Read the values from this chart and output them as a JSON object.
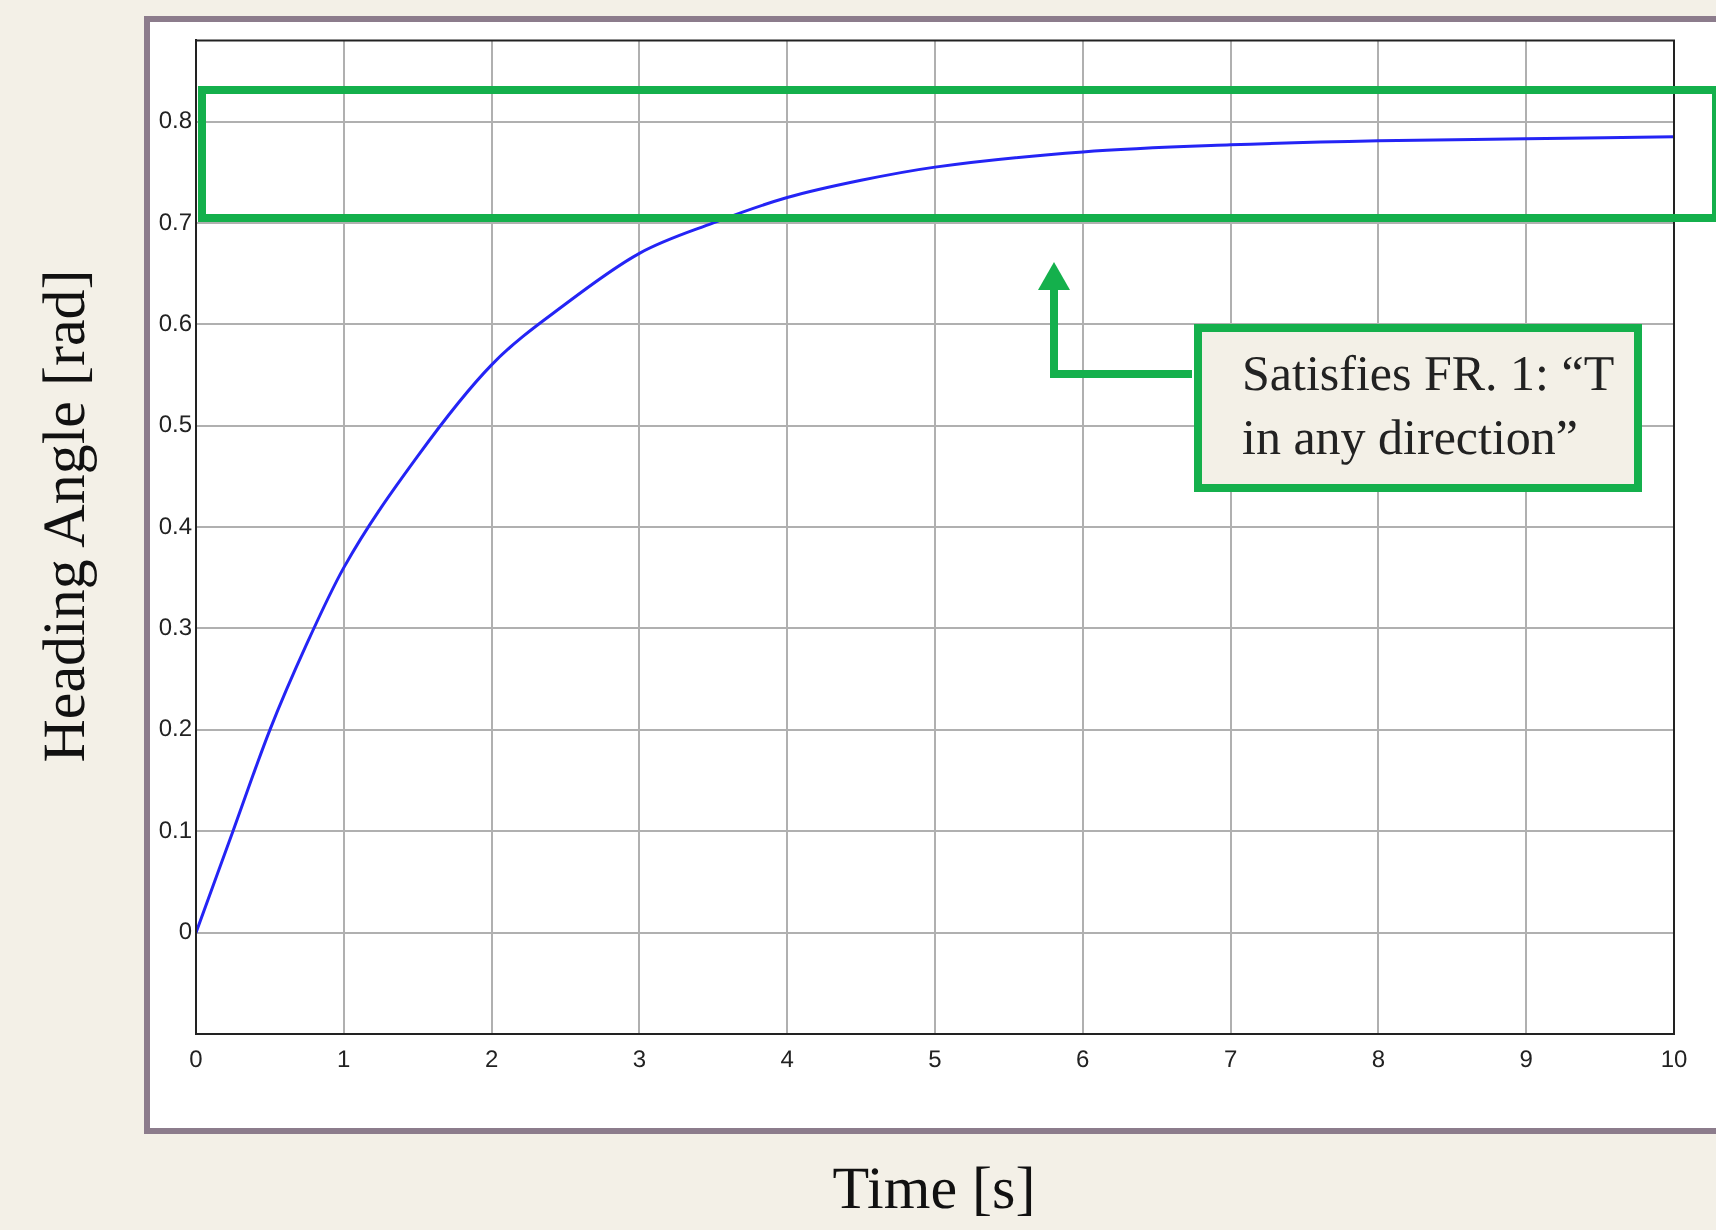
{
  "chart_data": {
    "type": "line",
    "xlabel": "Time [s]",
    "ylabel": "Heading Angle [rad]",
    "x": [
      0,
      0.25,
      0.5,
      0.75,
      1,
      1.5,
      2,
      2.5,
      3,
      3.5,
      4,
      4.5,
      5,
      6,
      7,
      8,
      9,
      10
    ],
    "series": [
      {
        "color": "#2424f5",
        "values": [
          0,
          0.1,
          0.2,
          0.285,
          0.36,
          0.47,
          0.56,
          0.62,
          0.67,
          0.7,
          0.725,
          0.742,
          0.755,
          0.77,
          0.777,
          0.781,
          0.783,
          0.785
        ]
      }
    ],
    "xlim": [
      0,
      10
    ],
    "xticks": [
      0,
      1,
      2,
      3,
      4,
      5,
      6,
      7,
      8,
      9,
      10
    ],
    "ylim": [
      -0.1,
      0.88
    ],
    "yticks": [
      0,
      0.1,
      0.2,
      0.3,
      0.4,
      0.5,
      0.6,
      0.7,
      0.8
    ],
    "grid": true,
    "marker": "none",
    "line_style": "solid",
    "annotations": [
      "Satisfies FR. 1: “T\nin any direction”"
    ]
  }
}
